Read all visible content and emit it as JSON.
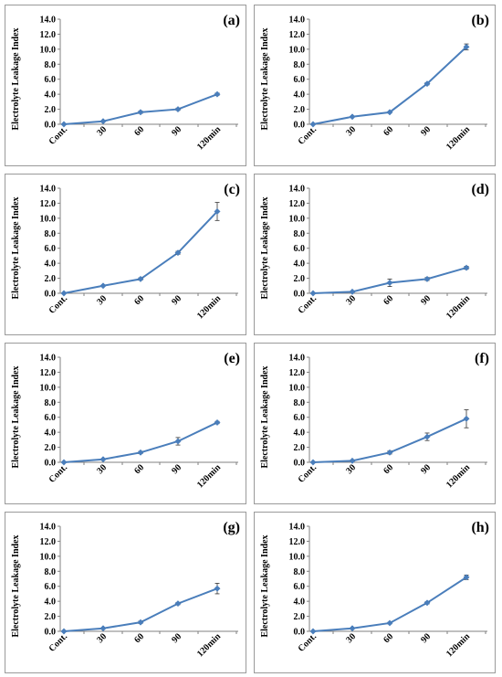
{
  "chart_data": [
    {
      "type": "line",
      "panel_label": "(a)",
      "ylabel": "Electrolyte  Leakage Index",
      "categories": [
        "Cont.",
        "30",
        "60",
        "90",
        "120min"
      ],
      "values": [
        0.0,
        0.4,
        1.6,
        2.0,
        4.0
      ],
      "errors": [
        0.05,
        0.1,
        0.15,
        0.15,
        0.15
      ],
      "ylim": [
        0,
        14
      ],
      "yticks": [
        "0.0",
        "2.0",
        "4.0",
        "6.0",
        "8.0",
        "10.0",
        "12.0",
        "14.0"
      ],
      "color": "#4a7ebb"
    },
    {
      "type": "line",
      "panel_label": "(b)",
      "ylabel": "Electrolyte  Leakage Index",
      "categories": [
        "Cont.",
        "30",
        "60",
        "90",
        "120min"
      ],
      "values": [
        0.0,
        1.0,
        1.6,
        5.4,
        10.3
      ],
      "errors": [
        0.05,
        0.1,
        0.1,
        0.15,
        0.4
      ],
      "ylim": [
        0,
        14
      ],
      "yticks": [
        "0.0",
        "2.0",
        "4.0",
        "6.0",
        "8.0",
        "10.0",
        "12.0",
        "14.0"
      ],
      "color": "#4a7ebb"
    },
    {
      "type": "line",
      "panel_label": "(c)",
      "ylabel": "Electrolyte  Leakage Index",
      "categories": [
        "Cont.",
        "30",
        "60",
        "90",
        "120min"
      ],
      "values": [
        0.0,
        1.0,
        1.9,
        5.4,
        10.9
      ],
      "errors": [
        0.05,
        0.1,
        0.15,
        0.2,
        1.2
      ],
      "ylim": [
        0,
        14
      ],
      "yticks": [
        "0.0",
        "2.0",
        "4.0",
        "6.0",
        "8.0",
        "10.0",
        "12.0",
        "14.0"
      ],
      "color": "#4a7ebb"
    },
    {
      "type": "line",
      "panel_label": "(d)",
      "ylabel": "Electrolyte  Leakage Index",
      "categories": [
        "Cont.",
        "30",
        "60",
        "90",
        "120min"
      ],
      "values": [
        0.0,
        0.2,
        1.4,
        1.9,
        3.4
      ],
      "errors": [
        0.05,
        0.1,
        0.5,
        0.2,
        0.2
      ],
      "ylim": [
        0,
        14
      ],
      "yticks": [
        "0.0",
        "2.0",
        "4.0",
        "6.0",
        "8.0",
        "10.0",
        "12.0",
        "14.0"
      ],
      "color": "#4a7ebb"
    },
    {
      "type": "line",
      "panel_label": "(e)",
      "ylabel": "Electrolyte  Leakage Index",
      "categories": [
        "Cont.",
        "30",
        "60",
        "90",
        "120min"
      ],
      "values": [
        0.0,
        0.4,
        1.3,
        2.8,
        5.3
      ],
      "errors": [
        0.05,
        0.1,
        0.15,
        0.5,
        0.15
      ],
      "ylim": [
        0,
        14
      ],
      "yticks": [
        "0.0",
        "2.0",
        "4.0",
        "6.0",
        "8.0",
        "10.0",
        "12.0",
        "14.0"
      ],
      "color": "#4a7ebb"
    },
    {
      "type": "line",
      "panel_label": "(f)",
      "ylabel": "Electrolyte  Leakage Index",
      "categories": [
        "Cont.",
        "30",
        "60",
        "90",
        "120min"
      ],
      "values": [
        0.0,
        0.2,
        1.3,
        3.4,
        5.8
      ],
      "errors": [
        0.05,
        0.1,
        0.2,
        0.5,
        1.2
      ],
      "ylim": [
        0,
        14
      ],
      "yticks": [
        "0.0",
        "2.0",
        "4.0",
        "6.0",
        "8.0",
        "10.0",
        "12.0",
        "14.0"
      ],
      "color": "#4a7ebb"
    },
    {
      "type": "line",
      "panel_label": "(g)",
      "ylabel": "Electrolyte  Leakage Index",
      "categories": [
        "Cont.",
        "30",
        "60",
        "90",
        "120min"
      ],
      "values": [
        0.0,
        0.4,
        1.2,
        3.7,
        5.7
      ],
      "errors": [
        0.05,
        0.1,
        0.15,
        0.15,
        0.7
      ],
      "ylim": [
        0,
        14
      ],
      "yticks": [
        "0.0",
        "2.0",
        "4.0",
        "6.0",
        "8.0",
        "10.0",
        "12.0",
        "14.0"
      ],
      "color": "#4a7ebb"
    },
    {
      "type": "line",
      "panel_label": "(h)",
      "ylabel": "Electrolyte  Leakage Index",
      "categories": [
        "Cont.",
        "30",
        "60",
        "90",
        "120min"
      ],
      "values": [
        0.0,
        0.4,
        1.1,
        3.8,
        7.2
      ],
      "errors": [
        0.05,
        0.1,
        0.1,
        0.15,
        0.3
      ],
      "ylim": [
        0,
        14
      ],
      "yticks": [
        "0.0",
        "2.0",
        "4.0",
        "6.0",
        "8.0",
        "10.0",
        "12.0",
        "14.0"
      ],
      "color": "#4a7ebb"
    }
  ]
}
